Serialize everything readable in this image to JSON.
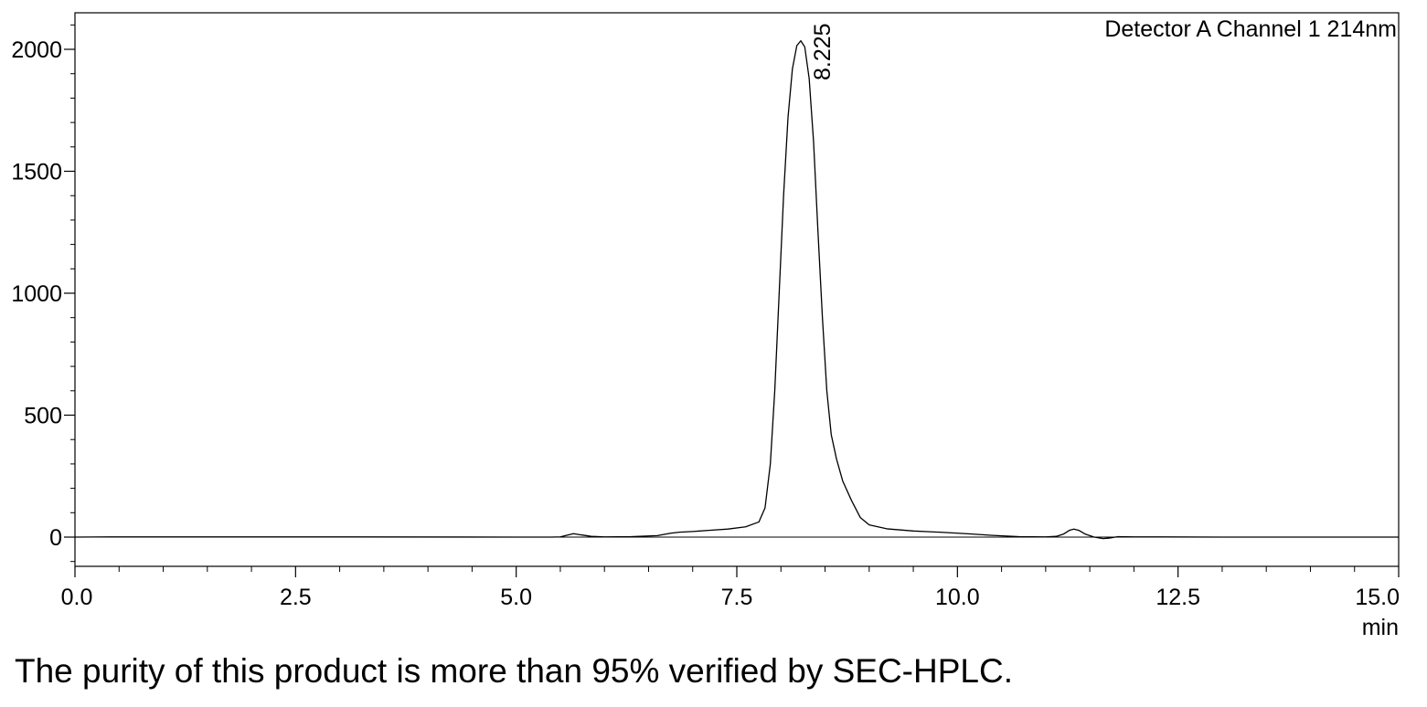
{
  "chart_data": {
    "type": "line",
    "title": "",
    "xlabel": "",
    "ylabel": "",
    "x_unit": "min",
    "legend": "Detector A Channel 1 214nm",
    "xlim": [
      0,
      15
    ],
    "ylim": [
      -120,
      2160
    ],
    "x_ticks": [
      0,
      2.5,
      5,
      7.5,
      10,
      12.5,
      15
    ],
    "x_tick_labels": [
      "0.0",
      "2.5",
      "5.0",
      "7.5",
      "10.0",
      "12.5",
      "15.0"
    ],
    "x_minor_step": 0.5,
    "y_ticks": [
      0,
      500,
      1000,
      1500,
      2000
    ],
    "y_tick_labels": [
      "0",
      "500",
      "1000",
      "1500",
      "2000"
    ],
    "y_minor_step": 100,
    "grid": false,
    "baseline": 0,
    "peak": {
      "x": 8.225,
      "y": 2035,
      "label": "8.225"
    },
    "series": [
      {
        "points": [
          [
            0.0,
            0
          ],
          [
            0.4,
            1
          ],
          [
            2.5,
            1
          ],
          [
            5.0,
            0
          ],
          [
            5.4,
            0
          ],
          [
            5.5,
            1
          ],
          [
            5.6,
            10
          ],
          [
            5.65,
            14
          ],
          [
            5.72,
            10
          ],
          [
            5.85,
            3
          ],
          [
            6.0,
            1
          ],
          [
            6.3,
            2
          ],
          [
            6.6,
            6
          ],
          [
            6.75,
            16
          ],
          [
            6.85,
            20
          ],
          [
            7.0,
            23
          ],
          [
            7.2,
            28
          ],
          [
            7.4,
            33
          ],
          [
            7.6,
            42
          ],
          [
            7.75,
            62
          ],
          [
            7.82,
            120
          ],
          [
            7.88,
            300
          ],
          [
            7.93,
            600
          ],
          [
            7.98,
            1000
          ],
          [
            8.03,
            1400
          ],
          [
            8.08,
            1720
          ],
          [
            8.13,
            1920
          ],
          [
            8.18,
            2015
          ],
          [
            8.225,
            2035
          ],
          [
            8.27,
            2010
          ],
          [
            8.32,
            1880
          ],
          [
            8.37,
            1620
          ],
          [
            8.42,
            1250
          ],
          [
            8.47,
            900
          ],
          [
            8.52,
            600
          ],
          [
            8.57,
            420
          ],
          [
            8.63,
            320
          ],
          [
            8.7,
            230
          ],
          [
            8.8,
            150
          ],
          [
            8.9,
            80
          ],
          [
            9.0,
            50
          ],
          [
            9.2,
            34
          ],
          [
            9.5,
            25
          ],
          [
            9.8,
            20
          ],
          [
            10.1,
            14
          ],
          [
            10.4,
            7
          ],
          [
            10.7,
            2
          ],
          [
            11.0,
            1
          ],
          [
            11.12,
            3
          ],
          [
            11.2,
            12
          ],
          [
            11.27,
            28
          ],
          [
            11.32,
            33
          ],
          [
            11.38,
            27
          ],
          [
            11.45,
            12
          ],
          [
            11.55,
            0
          ],
          [
            11.65,
            -6
          ],
          [
            11.72,
            -4
          ],
          [
            11.82,
            2
          ],
          [
            12.0,
            1
          ],
          [
            13.0,
            0
          ],
          [
            14.2,
            0
          ],
          [
            15.0,
            0
          ]
        ]
      }
    ]
  },
  "caption": "The purity of this product is more than 95% verified by SEC-HPLC."
}
